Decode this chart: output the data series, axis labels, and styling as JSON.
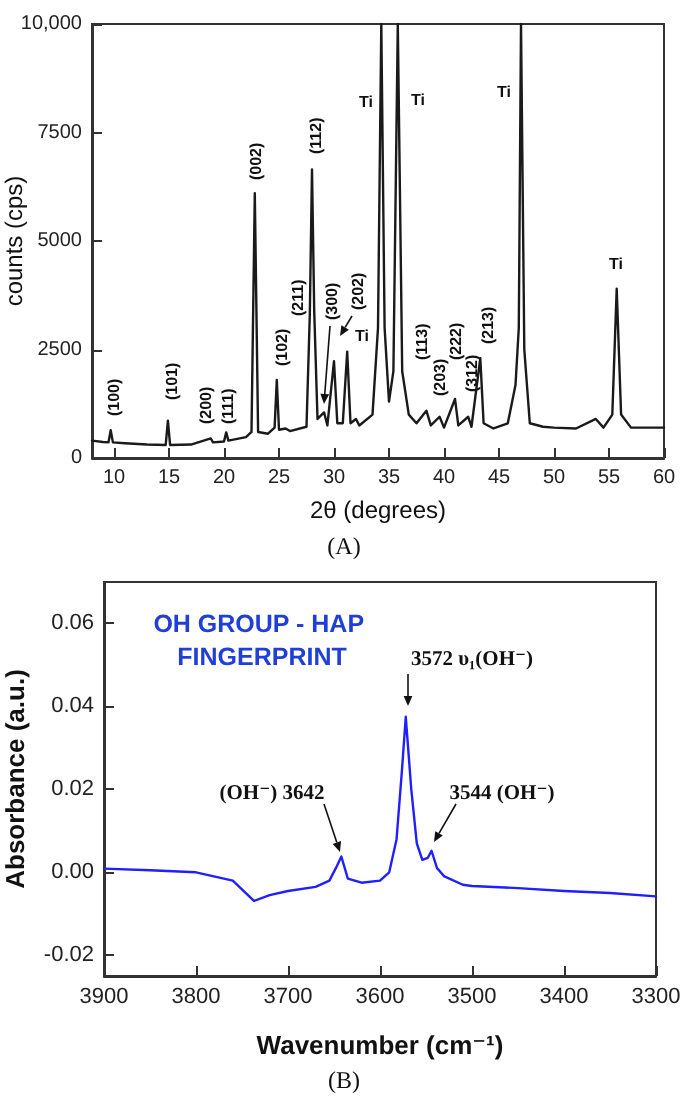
{
  "chart_data": [
    {
      "type": "line",
      "xlabel": "2θ (degrees)",
      "ylabel": "counts (cps)",
      "xlim": [
        8,
        60
      ],
      "xticks": [
        10,
        15,
        20,
        25,
        30,
        35,
        40,
        45,
        50,
        55,
        60
      ],
      "ylim": [
        0,
        10000
      ],
      "yticks": [
        0,
        2500,
        5000,
        7500,
        {
          "value": 10000,
          "label": "10,000"
        }
      ],
      "grid": false,
      "marker": "none",
      "line_style": "solid",
      "series": [
        {
          "color": "#1a1a1a",
          "x": [
            8,
            9,
            9.5,
            9.7,
            9.9,
            11,
            13,
            14.7,
            14.9,
            15.1,
            17,
            18.8,
            19,
            20,
            20.2,
            20.4,
            22,
            22.5,
            22.8,
            23.1,
            24,
            24.6,
            24.8,
            25.0,
            25.6,
            26,
            27.5,
            27.8,
            28.0,
            28.2,
            28.5,
            29.1,
            29.4,
            30.0,
            30.3,
            30.8,
            31.2,
            31.5,
            32.0,
            32.3,
            33.5,
            34.0,
            34.3,
            34.6,
            35.0,
            35.4,
            35.8,
            36.2,
            36.8,
            37.5,
            38.4,
            38.8,
            39.6,
            40,
            41.0,
            41.3,
            42.2,
            42.5,
            43.3,
            43.6,
            44.5,
            45.8,
            46.5,
            46.8,
            47.0,
            47.3,
            47.8,
            49,
            50,
            52,
            53.8,
            54.5,
            55.3,
            55.7,
            56.1,
            57,
            60
          ],
          "values": [
            400,
            370,
            360,
            640,
            360,
            340,
            310,
            300,
            860,
            300,
            310,
            450,
            360,
            380,
            590,
            400,
            480,
            600,
            6100,
            600,
            560,
            700,
            1800,
            650,
            680,
            620,
            720,
            3300,
            6650,
            3400,
            900,
            1050,
            750,
            2230,
            800,
            800,
            2450,
            800,
            900,
            750,
            1000,
            3000,
            10000,
            3000,
            1300,
            2000,
            10000,
            2000,
            1000,
            800,
            1090,
            750,
            950,
            700,
            1360,
            750,
            950,
            720,
            2300,
            800,
            680,
            800,
            1680,
            3000,
            10000,
            2500,
            800,
            720,
            700,
            680,
            900,
            700,
            1000,
            3900,
            1000,
            700,
            700
          ]
        }
      ],
      "annotations": [
        "(100)",
        "(101)",
        "(200)",
        "(111)",
        "(002)",
        "(102)",
        "(211)",
        "(112)",
        "(300)",
        "(202)",
        "Ti",
        "(113)",
        "(203)",
        "(222)",
        "(312)",
        "(213)",
        "Ti",
        "Ti",
        "Ti",
        "Ti",
        "(A)"
      ]
    },
    {
      "type": "line",
      "xlabel": "Wavenumber (cm⁻¹)",
      "ylabel": "Absorbance (a.u.)",
      "xlim": [
        3900,
        3300
      ],
      "xticks": [
        3900,
        3800,
        3700,
        3600,
        3500,
        3400,
        3300
      ],
      "ylim": [
        -0.025,
        0.07
      ],
      "yticks": [
        {
          "value": -0.02,
          "label": "-0.02"
        },
        {
          "value": 0,
          "label": "0.00"
        },
        {
          "value": 0.02,
          "label": "0.02"
        },
        {
          "value": 0.04,
          "label": "0.04"
        },
        {
          "value": 0.06,
          "label": "0.06"
        }
      ],
      "grid": false,
      "marker": "none",
      "line_style": "solid",
      "series": [
        {
          "color": "#1f1fff",
          "x": [
            3900,
            3850,
            3800,
            3760,
            3737,
            3720,
            3700,
            3670,
            3655,
            3648,
            3642,
            3635,
            3620,
            3600,
            3590,
            3582,
            3576,
            3572,
            3566,
            3560,
            3554,
            3548,
            3544,
            3538,
            3530,
            3510,
            3500,
            3450,
            3400,
            3350,
            3300
          ],
          "values": [
            0.0009,
            0.0005,
            0.0,
            -0.002,
            -0.0069,
            -0.0055,
            -0.0045,
            -0.0035,
            -0.002,
            0.001,
            0.0038,
            -0.0015,
            -0.0025,
            -0.002,
            0.0,
            0.008,
            0.025,
            0.0375,
            0.02,
            0.007,
            0.003,
            0.0035,
            0.0052,
            0.001,
            -0.001,
            -0.003,
            -0.0033,
            -0.0038,
            -0.0045,
            -0.005,
            -0.0058
          ]
        }
      ],
      "annotations": [
        "OH GROUP - HAP FINGERPRINT",
        "3572 υ₁(OH⁻)",
        "(OH⁻) 3642",
        "3544 (OH⁻)",
        "(B)"
      ]
    }
  ]
}
